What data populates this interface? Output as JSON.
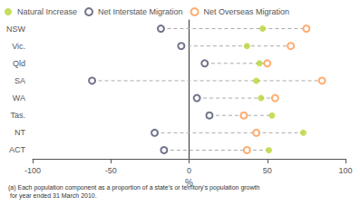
{
  "chart_data": {
    "type": "scatter",
    "orientation": "horizontal",
    "categories": [
      "NSW",
      "Vic.",
      "Qld",
      "SA",
      "WA",
      "Tas.",
      "NT",
      "ACT"
    ],
    "series": [
      {
        "name": "Natural Increase",
        "marker": "circle",
        "values": [
          47,
          37,
          45,
          43,
          46,
          53,
          73,
          51
        ]
      },
      {
        "name": "Net Interstate Migration",
        "marker": "open_circle",
        "values": [
          -18,
          -5,
          10,
          -62,
          5,
          13,
          -22,
          -16
        ]
      },
      {
        "name": "Net Overseas Migration",
        "marker": "open_circle",
        "values": [
          75,
          65,
          50,
          85,
          55,
          35,
          43,
          37
        ]
      }
    ],
    "xlabel": "%",
    "xlim": [
      -100,
      100
    ],
    "xticks": [
      -100,
      -50,
      0,
      50,
      100
    ],
    "grid": false,
    "legend": "upper left",
    "annotations": [
      "(a) Each population component as a proportion of a state's or territory's population growth\n for year ended 31 March 2010."
    ]
  }
}
